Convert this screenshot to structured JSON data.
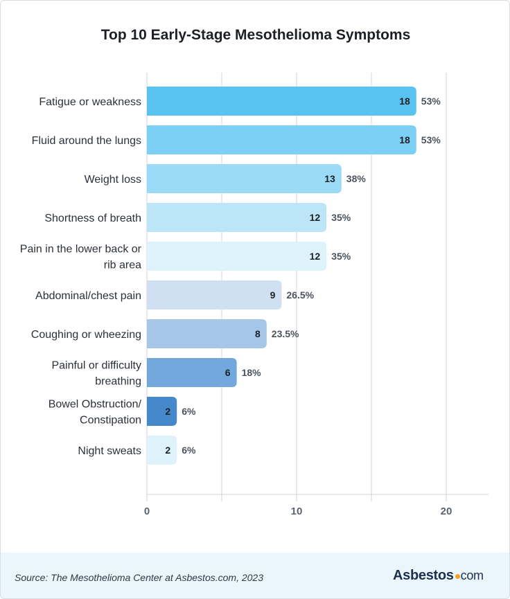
{
  "footer": {
    "source": "Source: The Mesothelioma Center at Asbestos.com, 2023",
    "logo_main": "Asbestos",
    "logo_suffix": "com"
  },
  "chart_data": {
    "type": "bar",
    "orientation": "horizontal",
    "title": "Top 10 Early-Stage Mesothelioma Symptoms",
    "xlim": [
      0,
      23
    ],
    "xticks": [
      0,
      10,
      20
    ],
    "grid": true,
    "categories": [
      [
        "Fatigue or weakness"
      ],
      [
        "Fluid around the lungs"
      ],
      [
        "Weight loss"
      ],
      [
        "Shortness of breath"
      ],
      [
        "Pain in the lower back or",
        "rib area"
      ],
      [
        "Abdominal/chest pain"
      ],
      [
        "Coughing or wheezing"
      ],
      [
        "Painful or difficulty",
        "breathing"
      ],
      [
        "Bowel Obstruction/",
        "Constipation"
      ],
      [
        "Night sweats"
      ]
    ],
    "values": [
      18,
      18,
      13,
      12,
      12,
      9,
      8,
      6,
      2,
      2
    ],
    "percent_labels": [
      "53%",
      "53%",
      "38%",
      "35%",
      "35%",
      "26.5%",
      "23.5%",
      "18%",
      "6%",
      "6%"
    ],
    "colors": [
      "#58c3f0",
      "#7dd0f5",
      "#9bdbf7",
      "#bce6f8",
      "#ddf2fb",
      "#d0e0f2",
      "#a6c6e8",
      "#72a8dc",
      "#4688cc",
      "#ddf2fb"
    ]
  }
}
